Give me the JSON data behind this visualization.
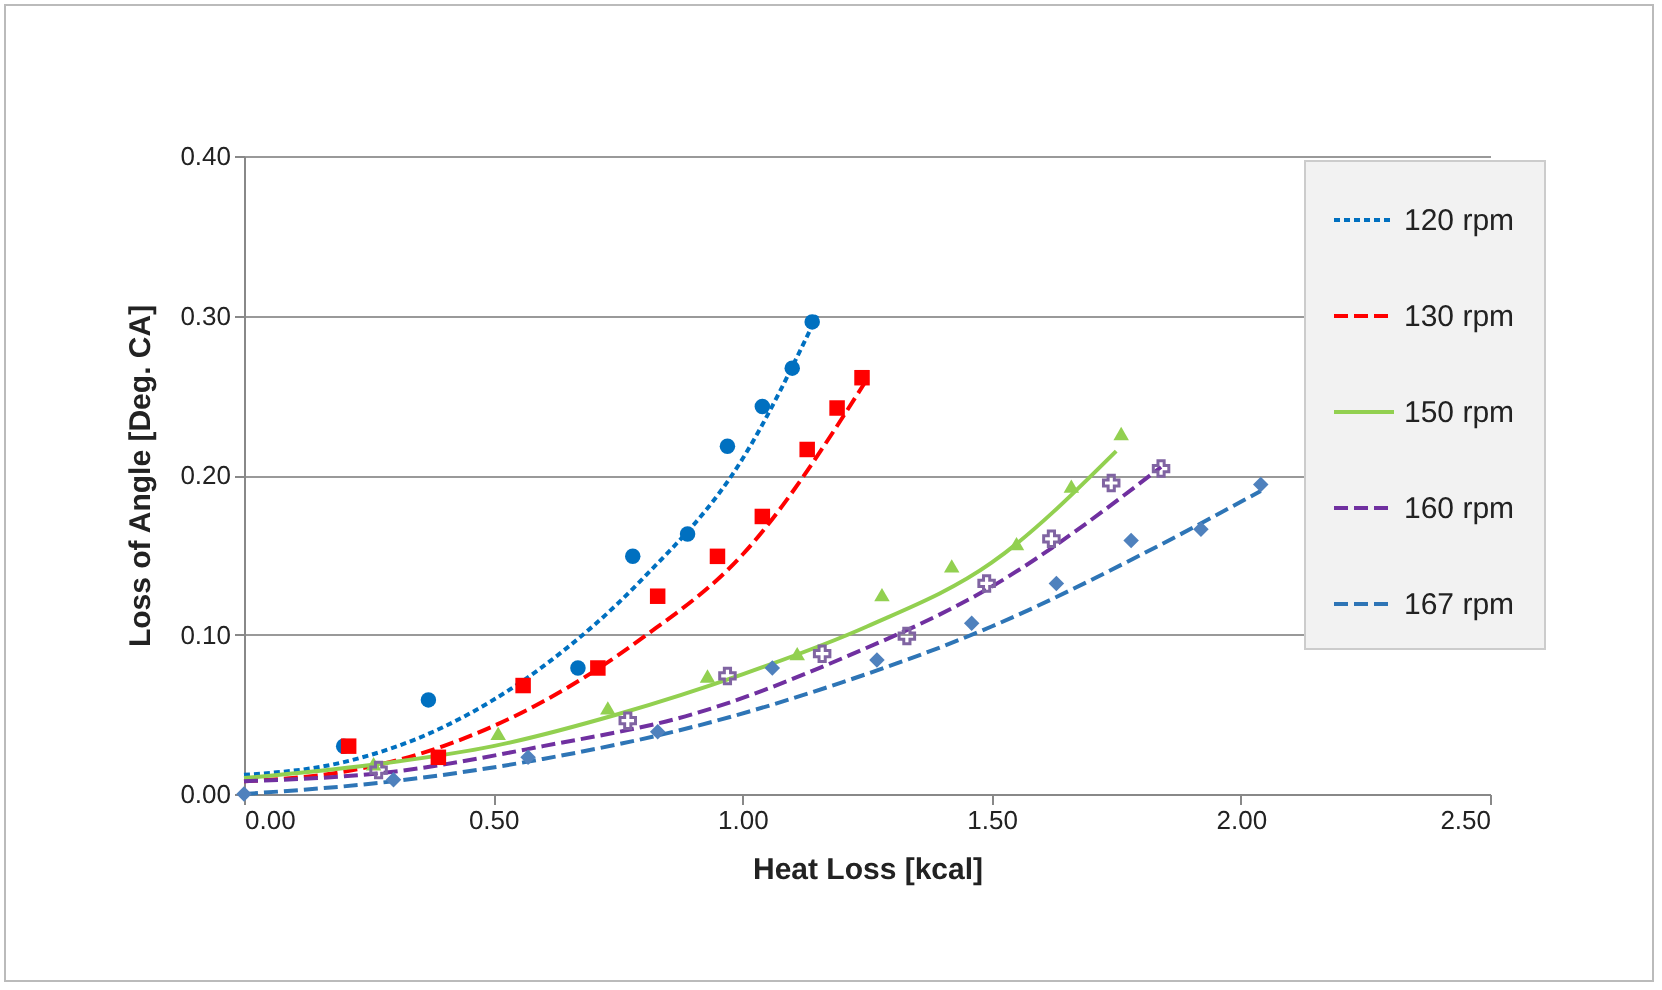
{
  "chart_data": {
    "type": "scatter",
    "xlabel": "Heat Loss [kcal]",
    "ylabel": "Loss of  Angle [Deg. CA]",
    "xlim": [
      0,
      2.5
    ],
    "xticks": [
      {
        "value": 0,
        "label": "0.00"
      },
      {
        "value": 0.5,
        "label": "0.50"
      },
      {
        "value": 1,
        "label": "1.00"
      },
      {
        "value": 1.5,
        "label": "1.50"
      },
      {
        "value": 2,
        "label": "2.00"
      },
      {
        "value": 2.5,
        "label": "2.50"
      }
    ],
    "ylim": [
      0,
      0.4
    ],
    "yticks": [
      {
        "value": 0,
        "label": "0.00"
      },
      {
        "value": 0.1,
        "label": "0.10"
      },
      {
        "value": 0.2,
        "label": "0.20"
      },
      {
        "value": 0.3,
        "label": "0.30"
      },
      {
        "value": 0.4,
        "label": "0.40"
      }
    ],
    "grid": "y",
    "legend": "top right",
    "series": [
      {
        "marker": "circle",
        "color": "#0070c0",
        "x": [
          0.2,
          0.37,
          0.67,
          0.78,
          0.89,
          0.97,
          1.04,
          1.1,
          1.14
        ],
        "values": [
          0.03,
          0.059,
          0.079,
          0.149,
          0.163,
          0.218,
          0.243,
          0.267,
          0.296
        ]
      },
      {
        "marker": "square",
        "color": "#ff0000",
        "x": [
          0.21,
          0.39,
          0.56,
          0.71,
          0.83,
          0.95,
          1.04,
          1.13,
          1.19,
          1.24
        ],
        "values": [
          0.03,
          0.023,
          0.068,
          0.079,
          0.124,
          0.149,
          0.174,
          0.216,
          0.242,
          0.261
        ]
      },
      {
        "marker": "triangle",
        "color": "#92d050",
        "x": [
          0.26,
          0.51,
          0.73,
          0.93,
          1.11,
          1.28,
          1.42,
          1.55,
          1.66,
          1.76
        ],
        "values": [
          0.019,
          0.038,
          0.054,
          0.074,
          0.088,
          0.125,
          0.143,
          0.157,
          0.193,
          0.226
        ]
      },
      {
        "marker": "cross",
        "color": "#8064a2",
        "x": [
          0.27,
          0.77,
          0.97,
          1.16,
          1.33,
          1.49,
          1.62,
          1.74,
          1.84
        ],
        "values": [
          0.015,
          0.046,
          0.074,
          0.088,
          0.099,
          0.132,
          0.16,
          0.195,
          0.204
        ]
      },
      {
        "marker": "diamond",
        "color": "#4f81bd",
        "x": [
          0,
          0.3,
          0.57,
          0.83,
          1.06,
          1.27,
          1.46,
          1.63,
          1.78,
          1.92,
          2.04
        ],
        "values": [
          0,
          0.009,
          0.023,
          0.039,
          0.079,
          0.084,
          0.107,
          0.132,
          0.159,
          0.166,
          0.194
        ]
      },
      {
        "type": "line",
        "name": "120 rpm",
        "line_style": "dotted",
        "color": "#0070c0",
        "x": [
          0,
          0.2,
          0.4,
          0.6,
          0.8,
          1.0,
          1.15
        ],
        "values": [
          0.012,
          0.02,
          0.042,
          0.08,
          0.135,
          0.21,
          0.3
        ]
      },
      {
        "type": "line",
        "name": "130 rpm",
        "line_style": "dashed",
        "color": "#ff0000",
        "x": [
          0,
          0.2,
          0.4,
          0.6,
          0.8,
          1.0,
          1.25
        ],
        "values": [
          0.008,
          0.014,
          0.03,
          0.058,
          0.098,
          0.15,
          0.26
        ]
      },
      {
        "type": "line",
        "name": "150 rpm",
        "line_style": "solid",
        "color": "#92d050",
        "x": [
          0,
          0.25,
          0.5,
          0.75,
          1.0,
          1.25,
          1.5,
          1.75
        ],
        "values": [
          0.01,
          0.018,
          0.03,
          0.05,
          0.075,
          0.105,
          0.145,
          0.215
        ]
      },
      {
        "type": "line",
        "name": "160 rpm",
        "line_style": "dashed",
        "color": "#7030a0",
        "x": [
          0,
          0.3,
          0.6,
          0.9,
          1.2,
          1.5,
          1.84
        ],
        "values": [
          0.008,
          0.014,
          0.03,
          0.05,
          0.085,
          0.13,
          0.205
        ]
      },
      {
        "type": "line",
        "name": "167 rpm",
        "line_style": "dashed",
        "color": "#2e75b6",
        "x": [
          0,
          0.3,
          0.6,
          0.9,
          1.2,
          1.5,
          1.8,
          2.04
        ],
        "values": [
          0,
          0.008,
          0.022,
          0.042,
          0.07,
          0.105,
          0.15,
          0.19
        ]
      }
    ]
  }
}
